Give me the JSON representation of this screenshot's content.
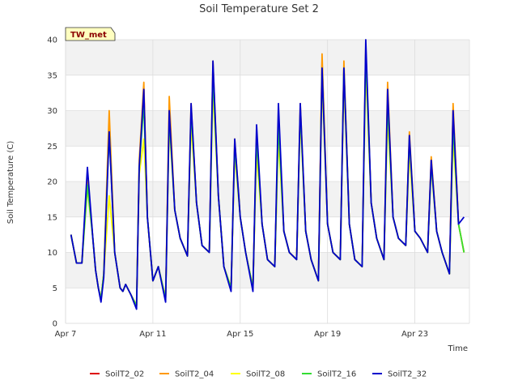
{
  "chart_data": {
    "type": "line",
    "title": "Soil Temperature Set 2",
    "xlabel": "Time",
    "ylabel": "Soil Temperature (C)",
    "site_label": "TW_met",
    "x_unit": "date",
    "x_range": [
      "2022-04-07",
      "2022-04-25T12:00"
    ],
    "x_ticks": [
      {
        "date": "2022-04-07",
        "label": "Apr 7"
      },
      {
        "date": "2022-04-11",
        "label": "Apr 11"
      },
      {
        "date": "2022-04-15",
        "label": "Apr 15"
      },
      {
        "date": "2022-04-19",
        "label": "Apr 19"
      },
      {
        "date": "2022-04-23",
        "label": "Apr 23"
      }
    ],
    "ylim": [
      0,
      40
    ],
    "y_ticks": [
      0,
      5,
      10,
      15,
      20,
      25,
      30,
      35,
      40
    ],
    "grid": true,
    "legend": "bottom",
    "x": [
      "2022-04-07T06:00",
      "2022-04-07T12:00",
      "2022-04-07T18:00",
      "2022-04-08T00:00",
      "2022-04-08T06:00",
      "2022-04-08T09:00",
      "2022-04-08T12:00",
      "2022-04-08T15:00",
      "2022-04-08T18:00",
      "2022-04-09T00:00",
      "2022-04-09T06:00",
      "2022-04-09T12:00",
      "2022-04-09T15:00",
      "2022-04-09T18:00",
      "2022-04-10T00:00",
      "2022-04-10T06:00",
      "2022-04-10T09:00",
      "2022-04-10T14:00",
      "2022-04-10T18:00",
      "2022-04-11T00:00",
      "2022-04-11T06:00",
      "2022-04-11T14:00",
      "2022-04-11T18:00",
      "2022-04-12T00:00",
      "2022-04-12T06:00",
      "2022-04-12T14:00",
      "2022-04-12T18:00",
      "2022-04-13T00:00",
      "2022-04-13T06:00",
      "2022-04-13T14:00",
      "2022-04-13T18:00",
      "2022-04-14T00:00",
      "2022-04-14T06:00",
      "2022-04-14T14:00",
      "2022-04-14T18:00",
      "2022-04-15T00:00",
      "2022-04-15T06:00",
      "2022-04-15T14:00",
      "2022-04-15T18:00",
      "2022-04-16T00:00",
      "2022-04-16T06:00",
      "2022-04-16T14:00",
      "2022-04-16T18:00",
      "2022-04-17T00:00",
      "2022-04-17T06:00",
      "2022-04-17T14:00",
      "2022-04-17T18:00",
      "2022-04-18T00:00",
      "2022-04-18T06:00",
      "2022-04-18T14:00",
      "2022-04-18T18:00",
      "2022-04-19T00:00",
      "2022-04-19T06:00",
      "2022-04-19T14:00",
      "2022-04-19T18:00",
      "2022-04-20T00:00",
      "2022-04-20T06:00",
      "2022-04-20T14:00",
      "2022-04-20T18:00",
      "2022-04-21T00:00",
      "2022-04-21T06:00",
      "2022-04-21T14:00",
      "2022-04-21T18:00",
      "2022-04-22T00:00",
      "2022-04-22T06:00",
      "2022-04-22T14:00",
      "2022-04-22T18:00",
      "2022-04-23T00:00",
      "2022-04-23T06:00",
      "2022-04-23T14:00",
      "2022-04-23T18:00",
      "2022-04-24T00:00",
      "2022-04-24T06:00",
      "2022-04-24T14:00",
      "2022-04-24T18:00",
      "2022-04-25T00:00",
      "2022-04-25T06:00"
    ],
    "series": [
      {
        "name": "SoilT2_02",
        "color": "#dd0000",
        "values": [
          12.5,
          8.5,
          8.5,
          20.5,
          12,
          7.5,
          5,
          3.5,
          7,
          28,
          10,
          5,
          4.5,
          5.5,
          4,
          2.5,
          22,
          33,
          15,
          6,
          8,
          3.5,
          30,
          16,
          12,
          9.5,
          30,
          17,
          11,
          10,
          36,
          18,
          8,
          5,
          25,
          15,
          10,
          5,
          26,
          14,
          9,
          8,
          28,
          13,
          10,
          9,
          30,
          13,
          9,
          6,
          37,
          14,
          10,
          9,
          36,
          14,
          9,
          8,
          38,
          17,
          12,
          9,
          32,
          15,
          12,
          11,
          26,
          13,
          12,
          10,
          23,
          13,
          10,
          7,
          30,
          14,
          10
        ]
      },
      {
        "name": "SoilT2_04",
        "color": "#ff9900",
        "values": [
          12.5,
          8.5,
          8.5,
          21,
          12,
          7.5,
          5,
          3.5,
          7,
          30,
          10,
          5,
          4.5,
          5.5,
          4,
          2.5,
          23,
          34,
          15,
          6,
          8,
          3.5,
          32,
          16,
          12,
          9.5,
          31,
          17,
          11,
          10,
          37,
          18,
          8,
          5,
          26,
          15,
          10,
          5,
          27,
          14,
          9,
          8,
          29,
          13,
          10,
          9,
          31,
          13,
          9,
          6,
          38,
          14,
          10,
          9,
          37,
          14,
          9,
          8,
          39,
          17,
          12,
          9,
          34,
          15,
          12,
          11,
          27,
          13,
          12,
          10,
          23.5,
          13,
          10,
          7,
          31,
          14,
          10
        ]
      },
      {
        "name": "SoilT2_08",
        "color": "#ffff00",
        "values": [
          12.5,
          8.5,
          8.5,
          19,
          12,
          7.5,
          5,
          3.5,
          7,
          18,
          10,
          5,
          4.5,
          5.5,
          4,
          2.5,
          21,
          26,
          15,
          6,
          8,
          3.5,
          28,
          16,
          12,
          9.5,
          28,
          17,
          11,
          10,
          33,
          18,
          8,
          5,
          24,
          15,
          10,
          5,
          24,
          14,
          9,
          8,
          26,
          13,
          10,
          9,
          29,
          13,
          9,
          6,
          34,
          14,
          10,
          9,
          34,
          14,
          9,
          8,
          36,
          17,
          12,
          9,
          29,
          15,
          12,
          11,
          24,
          13,
          12,
          10,
          22,
          13,
          10,
          7,
          26,
          14,
          10
        ]
      },
      {
        "name": "SoilT2_16",
        "color": "#33dd33",
        "values": [
          12.5,
          8.5,
          8.5,
          19.5,
          12,
          7.5,
          5,
          3.5,
          7,
          27,
          10,
          5,
          4.5,
          5.5,
          4,
          2.5,
          22,
          31,
          15,
          6,
          8,
          3.5,
          29,
          16,
          12,
          9.5,
          30,
          17,
          11,
          10,
          35,
          18,
          8,
          5,
          25,
          15,
          10,
          5,
          26,
          14,
          9,
          8,
          28,
          13,
          10,
          9,
          30,
          13,
          9,
          6,
          36,
          14,
          10,
          9,
          36,
          14,
          9,
          8,
          38,
          17,
          12,
          9,
          31,
          15,
          12,
          11,
          26,
          13,
          12,
          10,
          22.5,
          13,
          10,
          7,
          28,
          14,
          10
        ]
      },
      {
        "name": "SoilT2_32",
        "color": "#0000cc",
        "values": [
          12.5,
          8.5,
          8.5,
          22,
          12,
          7.5,
          5,
          3,
          6.5,
          27,
          10,
          5,
          4.5,
          5.5,
          4,
          2,
          22,
          33,
          15,
          6,
          8,
          3,
          30,
          16,
          12,
          9.5,
          31,
          17,
          11,
          10,
          37,
          18,
          8,
          4.5,
          26,
          15,
          10,
          4.5,
          28,
          14,
          9,
          8,
          31,
          13,
          10,
          9,
          31,
          13,
          9,
          6,
          36,
          14,
          10,
          9,
          36,
          14,
          9,
          8,
          40,
          17,
          12,
          9,
          33,
          15,
          12,
          11,
          26.5,
          13,
          12,
          10,
          23,
          13,
          10,
          7,
          30,
          14,
          15
        ]
      }
    ]
  }
}
